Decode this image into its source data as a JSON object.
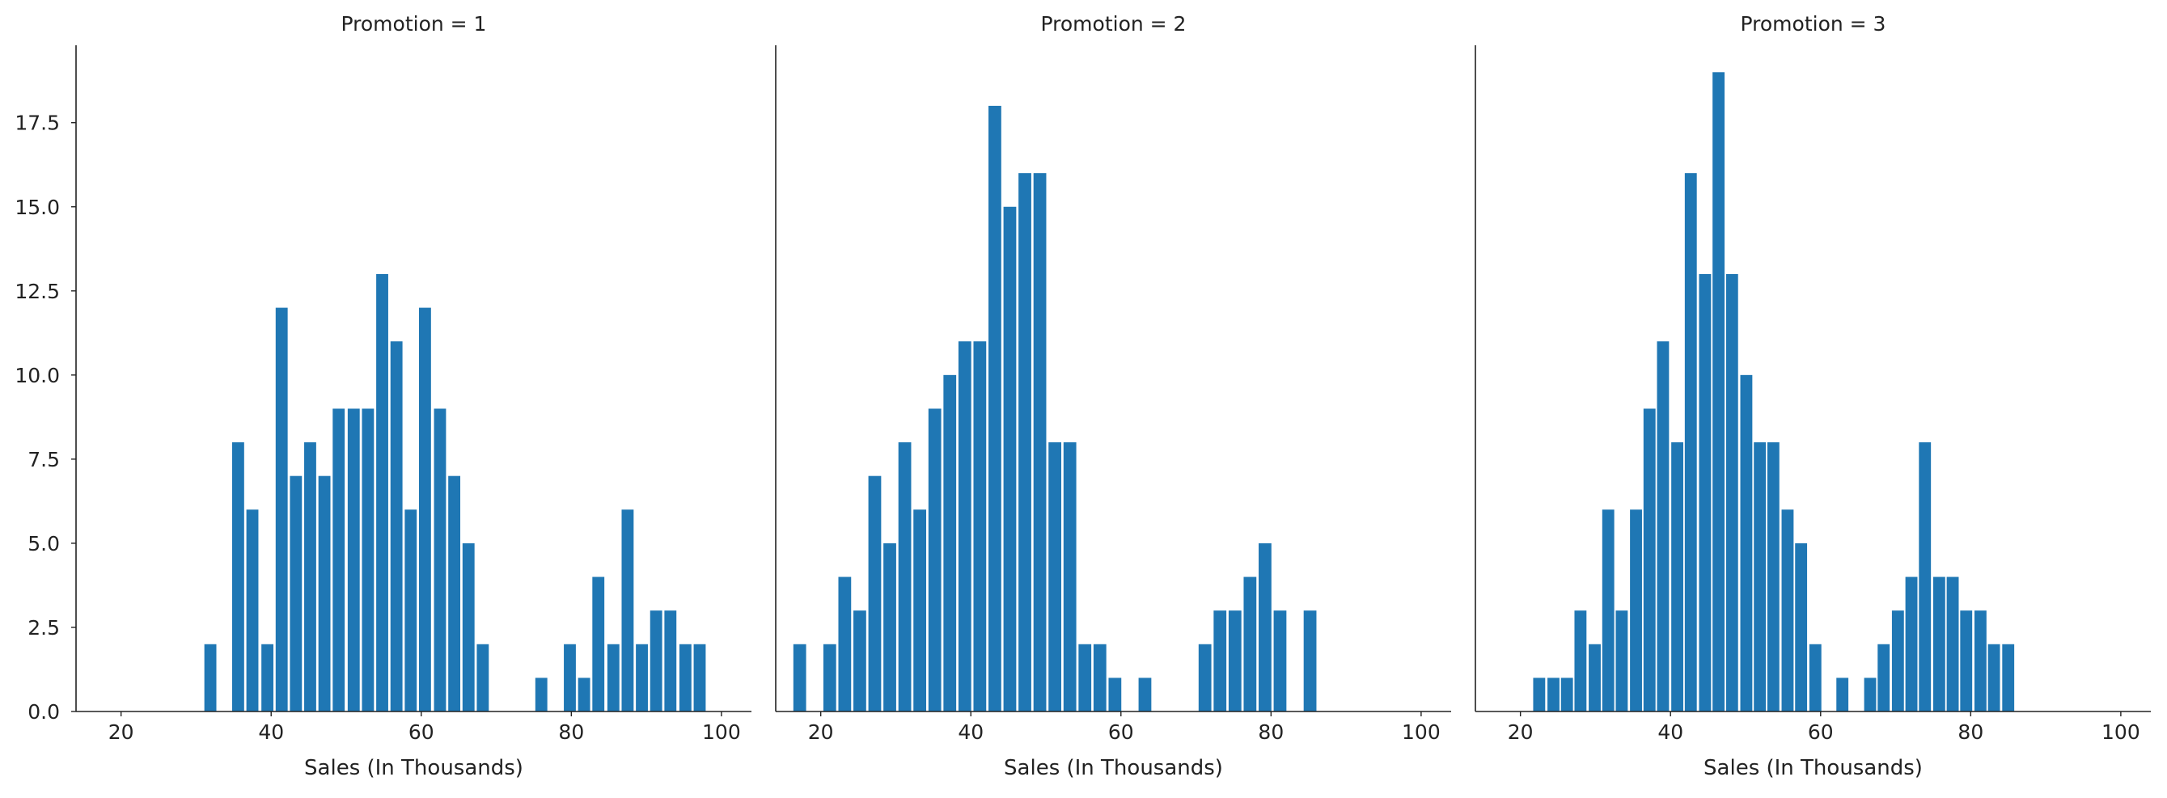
{
  "chart_data": {
    "type": "bar",
    "layout": "faceted-histogram",
    "bar_color": "#1f77b4",
    "axis_color": "#222222",
    "grid": false,
    "shared_y": true,
    "xlim": [
      14,
      104
    ],
    "ylim": [
      0,
      19.8
    ],
    "xticks": [
      20,
      40,
      60,
      80,
      100
    ],
    "yticks": [
      0.0,
      2.5,
      5.0,
      7.5,
      10.0,
      12.5,
      15.0,
      17.5
    ],
    "ytick_labels": [
      "0.0",
      "2.5",
      "5.0",
      "7.5",
      "10.0",
      "12.5",
      "15.0",
      "17.5"
    ],
    "panels": [
      {
        "title": "Promotion = 1",
        "xlabel": "Sales (In Thousands)",
        "bin_width": 1.6,
        "bins": [
          {
            "x": 31.9,
            "y": 2
          },
          {
            "x": 35.6,
            "y": 8
          },
          {
            "x": 37.5,
            "y": 6
          },
          {
            "x": 39.5,
            "y": 2
          },
          {
            "x": 41.4,
            "y": 12
          },
          {
            "x": 43.3,
            "y": 7
          },
          {
            "x": 45.2,
            "y": 8
          },
          {
            "x": 47.1,
            "y": 7
          },
          {
            "x": 49.0,
            "y": 9
          },
          {
            "x": 51.0,
            "y": 9
          },
          {
            "x": 52.9,
            "y": 9
          },
          {
            "x": 54.8,
            "y": 13
          },
          {
            "x": 56.7,
            "y": 11
          },
          {
            "x": 58.6,
            "y": 6
          },
          {
            "x": 60.5,
            "y": 12
          },
          {
            "x": 62.5,
            "y": 9
          },
          {
            "x": 64.4,
            "y": 7
          },
          {
            "x": 66.3,
            "y": 5
          },
          {
            "x": 68.2,
            "y": 2
          },
          {
            "x": 76.0,
            "y": 1
          },
          {
            "x": 79.8,
            "y": 2
          },
          {
            "x": 81.7,
            "y": 1
          },
          {
            "x": 83.6,
            "y": 4
          },
          {
            "x": 85.6,
            "y": 2
          },
          {
            "x": 87.5,
            "y": 6
          },
          {
            "x": 89.4,
            "y": 2
          },
          {
            "x": 91.3,
            "y": 3
          },
          {
            "x": 93.2,
            "y": 3
          },
          {
            "x": 95.2,
            "y": 2
          },
          {
            "x": 97.1,
            "y": 2
          }
        ]
      },
      {
        "title": "Promotion = 2",
        "xlabel": "Sales (In Thousands)",
        "bin_width": 1.7,
        "bins": [
          {
            "x": 17.2,
            "y": 2
          },
          {
            "x": 21.2,
            "y": 2
          },
          {
            "x": 23.2,
            "y": 4
          },
          {
            "x": 25.2,
            "y": 3
          },
          {
            "x": 27.2,
            "y": 7
          },
          {
            "x": 29.2,
            "y": 5
          },
          {
            "x": 31.2,
            "y": 8
          },
          {
            "x": 33.2,
            "y": 6
          },
          {
            "x": 35.2,
            "y": 9
          },
          {
            "x": 37.2,
            "y": 10
          },
          {
            "x": 39.2,
            "y": 11
          },
          {
            "x": 41.2,
            "y": 11
          },
          {
            "x": 43.2,
            "y": 18
          },
          {
            "x": 45.2,
            "y": 15
          },
          {
            "x": 47.2,
            "y": 16
          },
          {
            "x": 49.2,
            "y": 16
          },
          {
            "x": 51.2,
            "y": 8
          },
          {
            "x": 53.2,
            "y": 8
          },
          {
            "x": 55.2,
            "y": 2
          },
          {
            "x": 57.2,
            "y": 2
          },
          {
            "x": 59.2,
            "y": 1
          },
          {
            "x": 63.2,
            "y": 1
          },
          {
            "x": 71.2,
            "y": 2
          },
          {
            "x": 73.2,
            "y": 3
          },
          {
            "x": 75.2,
            "y": 3
          },
          {
            "x": 77.2,
            "y": 4
          },
          {
            "x": 79.2,
            "y": 5
          },
          {
            "x": 81.2,
            "y": 3
          },
          {
            "x": 85.2,
            "y": 3
          }
        ]
      },
      {
        "title": "Promotion = 3",
        "xlabel": "Sales (In Thousands)",
        "bin_width": 1.6,
        "bins": [
          {
            "x": 22.5,
            "y": 1
          },
          {
            "x": 24.4,
            "y": 1
          },
          {
            "x": 26.2,
            "y": 1
          },
          {
            "x": 28.0,
            "y": 3
          },
          {
            "x": 29.9,
            "y": 2
          },
          {
            "x": 31.7,
            "y": 6
          },
          {
            "x": 33.5,
            "y": 3
          },
          {
            "x": 35.4,
            "y": 6
          },
          {
            "x": 37.2,
            "y": 9
          },
          {
            "x": 39.0,
            "y": 11
          },
          {
            "x": 40.9,
            "y": 8
          },
          {
            "x": 42.7,
            "y": 16
          },
          {
            "x": 44.6,
            "y": 13
          },
          {
            "x": 46.4,
            "y": 19
          },
          {
            "x": 48.2,
            "y": 13
          },
          {
            "x": 50.1,
            "y": 10
          },
          {
            "x": 51.9,
            "y": 8
          },
          {
            "x": 53.7,
            "y": 8
          },
          {
            "x": 55.6,
            "y": 6
          },
          {
            "x": 57.4,
            "y": 5
          },
          {
            "x": 59.3,
            "y": 2
          },
          {
            "x": 62.9,
            "y": 1
          },
          {
            "x": 66.6,
            "y": 1
          },
          {
            "x": 68.4,
            "y": 2
          },
          {
            "x": 70.3,
            "y": 3
          },
          {
            "x": 72.1,
            "y": 4
          },
          {
            "x": 73.9,
            "y": 8
          },
          {
            "x": 75.8,
            "y": 4
          },
          {
            "x": 77.6,
            "y": 4
          },
          {
            "x": 79.4,
            "y": 3
          },
          {
            "x": 81.3,
            "y": 3
          },
          {
            "x": 83.1,
            "y": 2
          },
          {
            "x": 85.0,
            "y": 2
          }
        ]
      }
    ]
  }
}
